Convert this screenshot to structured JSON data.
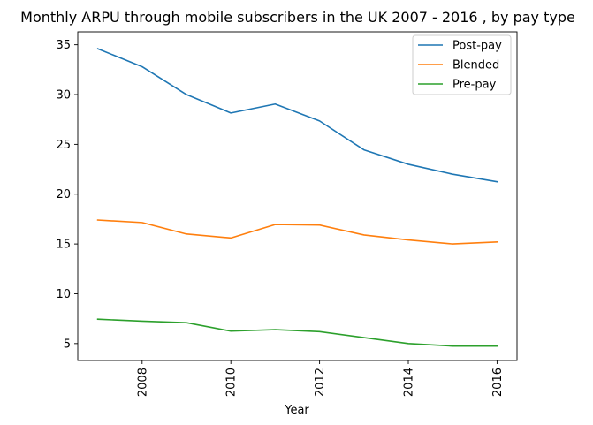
{
  "chart_data": {
    "type": "line",
    "title": "Monthly ARPU through mobile subscribers in the UK 2007 - 2016 , by pay type",
    "xlabel": "Year",
    "ylabel": "",
    "x": [
      2007,
      2008,
      2009,
      2010,
      2011,
      2012,
      2013,
      2014,
      2015,
      2016
    ],
    "xticks": [
      2008,
      2010,
      2012,
      2014,
      2016
    ],
    "yticks": [
      5,
      10,
      15,
      20,
      25,
      30,
      35
    ],
    "xlim": [
      2006.55,
      2016.45
    ],
    "ylim": [
      3.3,
      36.3
    ],
    "grid": false,
    "legend_position": "upper-right",
    "series": [
      {
        "name": "Post-pay",
        "color": "#1f77b4",
        "values": [
          34.6,
          32.8,
          30.0,
          28.15,
          29.05,
          27.35,
          24.45,
          23.0,
          22.0,
          21.25
        ]
      },
      {
        "name": "Blended",
        "color": "#ff7f0e",
        "values": [
          17.4,
          17.15,
          16.0,
          15.6,
          16.95,
          16.9,
          15.9,
          15.4,
          15.0,
          15.2
        ]
      },
      {
        "name": "Pre-pay",
        "color": "#2ca02c",
        "values": [
          7.45,
          7.25,
          7.1,
          6.25,
          6.4,
          6.2,
          5.6,
          5.0,
          4.75,
          4.75
        ]
      }
    ]
  }
}
